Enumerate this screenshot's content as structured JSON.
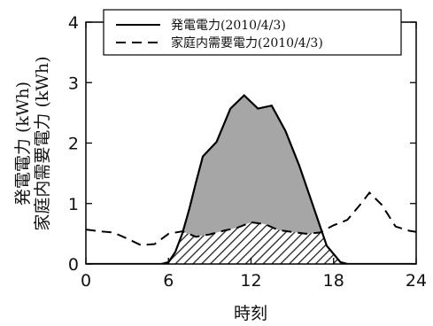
{
  "chart_data": {
    "type": "area",
    "x_axis": {
      "label": "時刻",
      "min": 0,
      "max": 24,
      "ticks": [
        0,
        6,
        12,
        18,
        24
      ]
    },
    "y_axis": {
      "label_lines": [
        "発電電力 (kWh)",
        "家庭内需要電力 (kWh)"
      ],
      "min": 0,
      "max": 4,
      "ticks": [
        0,
        1,
        2,
        3,
        4
      ]
    },
    "legend": {
      "placement": "top"
    },
    "series": [
      {
        "name": "発電電力(2010/4/3)",
        "style": "solid",
        "fill": "#a6a6a6",
        "x": [
          0,
          5.5,
          6,
          6.5,
          7,
          7.5,
          8,
          8.5,
          9.5,
          10.5,
          11.5,
          12.5,
          13.5,
          14.5,
          15.5,
          16.5,
          17.5,
          18.5,
          19,
          24
        ],
        "y": [
          0,
          0,
          0.03,
          0.2,
          0.5,
          0.9,
          1.35,
          1.78,
          2.02,
          2.57,
          2.79,
          2.57,
          2.62,
          2.2,
          1.63,
          0.97,
          0.3,
          0.03,
          0,
          0
        ]
      },
      {
        "name": "家庭内需要電力(2010/4/3)",
        "style": "dashed",
        "x": [
          0,
          1,
          2,
          3,
          4,
          5,
          6,
          7,
          8,
          9,
          10,
          11,
          12,
          13,
          14,
          15,
          16,
          17,
          18,
          19,
          20,
          20.6,
          21.5,
          22.5,
          23.5,
          24
        ],
        "y": [
          0.57,
          0.54,
          0.52,
          0.42,
          0.31,
          0.33,
          0.5,
          0.54,
          0.45,
          0.49,
          0.55,
          0.6,
          0.69,
          0.66,
          0.56,
          0.53,
          0.5,
          0.52,
          0.64,
          0.73,
          1.0,
          1.18,
          0.98,
          0.62,
          0.55,
          0.53
        ]
      }
    ]
  }
}
